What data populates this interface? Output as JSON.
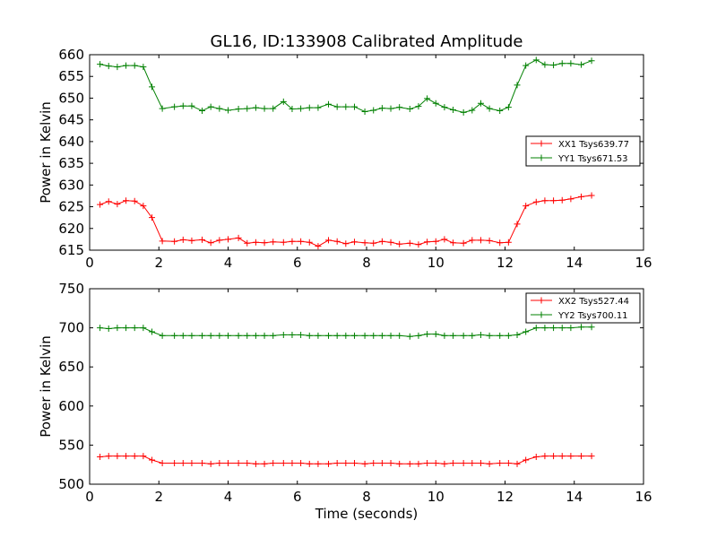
{
  "chart_data": [
    {
      "type": "line",
      "title": "GL16, ID:133908 Calibrated Amplitude",
      "xlabel": "",
      "ylabel": "Power in Kelvin",
      "xlim": [
        0,
        16
      ],
      "ylim": [
        615,
        660
      ],
      "xticks": [
        0,
        2,
        4,
        6,
        8,
        10,
        12,
        14,
        16
      ],
      "yticks": [
        615,
        620,
        625,
        630,
        635,
        640,
        645,
        650,
        655,
        660
      ],
      "legend_position": "center-right",
      "x": [
        0.3,
        0.55,
        0.8,
        1.05,
        1.3,
        1.55,
        1.8,
        2.1,
        2.45,
        2.7,
        2.95,
        3.25,
        3.5,
        3.75,
        4.0,
        4.3,
        4.55,
        4.8,
        5.05,
        5.3,
        5.6,
        5.85,
        6.1,
        6.35,
        6.6,
        6.9,
        7.15,
        7.4,
        7.65,
        7.95,
        8.2,
        8.45,
        8.7,
        8.95,
        9.25,
        9.5,
        9.75,
        10.0,
        10.25,
        10.5,
        10.8,
        11.05,
        11.3,
        11.55,
        11.85,
        12.1,
        12.35,
        12.6,
        12.9,
        13.15,
        13.4,
        13.65,
        13.9,
        14.2,
        14.5
      ],
      "series": [
        {
          "name": "XX1 Tsys639.77",
          "color": "#ff0000",
          "values": [
            625.5,
            626.2,
            625.6,
            626.4,
            626.3,
            625.2,
            622.5,
            617.1,
            617.0,
            617.4,
            617.2,
            617.4,
            616.7,
            617.3,
            617.5,
            617.8,
            616.6,
            616.8,
            616.7,
            616.9,
            616.8,
            617.0,
            617.0,
            616.8,
            615.9,
            617.3,
            617.0,
            616.5,
            616.9,
            616.7,
            616.6,
            617.0,
            616.8,
            616.4,
            616.6,
            616.3,
            616.9,
            617.0,
            617.5,
            616.7,
            616.6,
            617.3,
            617.3,
            617.2,
            616.7,
            616.8,
            621.0,
            625.2,
            626.1,
            626.4,
            626.4,
            626.5,
            626.8,
            627.3,
            627.6
          ]
        },
        {
          "name": "YY1 Tsys671.53",
          "color": "#008000",
          "values": [
            657.8,
            657.4,
            657.2,
            657.5,
            657.5,
            657.2,
            652.6,
            647.6,
            648.0,
            648.2,
            648.2,
            647.1,
            648.0,
            647.6,
            647.2,
            647.5,
            647.6,
            647.8,
            647.6,
            647.6,
            649.2,
            647.5,
            647.6,
            647.8,
            647.8,
            648.6,
            648.0,
            648.0,
            648.0,
            646.9,
            647.2,
            647.7,
            647.6,
            647.9,
            647.5,
            648.1,
            649.9,
            648.8,
            647.9,
            647.3,
            646.7,
            647.2,
            648.8,
            647.6,
            647.1,
            647.9,
            653.0,
            657.5,
            658.8,
            657.7,
            657.6,
            658.0,
            658.0,
            657.7,
            658.6
          ]
        }
      ]
    },
    {
      "type": "line",
      "title": "",
      "xlabel": "Time (seconds)",
      "ylabel": "Power in Kelvin",
      "xlim": [
        0,
        16
      ],
      "ylim": [
        500,
        750
      ],
      "xticks": [
        0,
        2,
        4,
        6,
        8,
        10,
        12,
        14,
        16
      ],
      "yticks": [
        500,
        550,
        600,
        650,
        700,
        750
      ],
      "legend_position": "top-right",
      "x": [
        0.3,
        0.55,
        0.8,
        1.05,
        1.3,
        1.55,
        1.8,
        2.1,
        2.45,
        2.7,
        2.95,
        3.25,
        3.5,
        3.75,
        4.0,
        4.3,
        4.55,
        4.8,
        5.05,
        5.3,
        5.6,
        5.85,
        6.1,
        6.35,
        6.6,
        6.9,
        7.15,
        7.4,
        7.65,
        7.95,
        8.2,
        8.45,
        8.7,
        8.95,
        9.25,
        9.5,
        9.75,
        10.0,
        10.25,
        10.5,
        10.8,
        11.05,
        11.3,
        11.55,
        11.85,
        12.1,
        12.35,
        12.6,
        12.9,
        13.15,
        13.4,
        13.65,
        13.9,
        14.2,
        14.5
      ],
      "series": [
        {
          "name": "XX2 Tsys527.44",
          "color": "#ff0000",
          "values": [
            535,
            536,
            536,
            536,
            536,
            536,
            531,
            527,
            527,
            527,
            527,
            527,
            526,
            527,
            527,
            527,
            527,
            526,
            526,
            527,
            527,
            527,
            527,
            526,
            526,
            526,
            527,
            527,
            527,
            526,
            527,
            527,
            527,
            526,
            526,
            526,
            527,
            527,
            526,
            527,
            527,
            527,
            527,
            526,
            527,
            527,
            526,
            531,
            535,
            536,
            536,
            536,
            536,
            536,
            536
          ]
        },
        {
          "name": "YY2 Tsys700.11",
          "color": "#008000",
          "values": [
            700,
            699,
            700,
            700,
            700,
            700,
            695,
            690,
            690,
            690,
            690,
            690,
            690,
            690,
            690,
            690,
            690,
            690,
            690,
            690,
            691,
            691,
            691,
            690,
            690,
            690,
            690,
            690,
            690,
            690,
            690,
            690,
            690,
            690,
            689,
            690,
            692,
            692,
            690,
            690,
            690,
            690,
            691,
            690,
            690,
            690,
            691,
            695,
            700,
            700,
            700,
            700,
            700,
            701,
            701
          ]
        }
      ]
    }
  ]
}
